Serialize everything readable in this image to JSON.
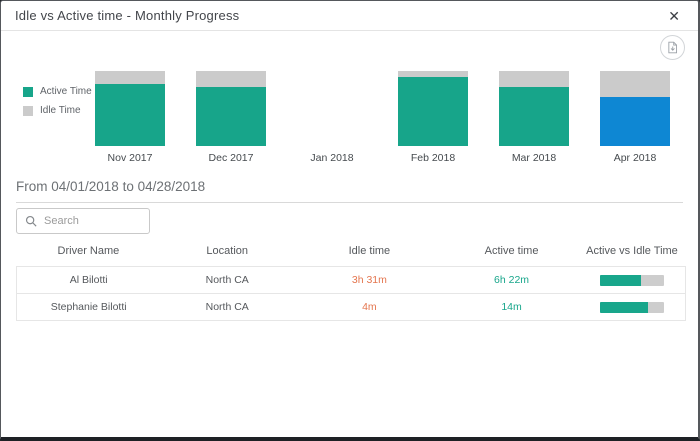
{
  "modal": {
    "title": "Idle vs Active time - Monthly Progress",
    "close_label": "✕"
  },
  "chart_data": {
    "type": "bar",
    "stacked": true,
    "stack_mode": "percent",
    "title": "Idle vs Active time - Monthly Progress",
    "categories": [
      "Nov 2017",
      "Dec 2017",
      "Jan 2018",
      "Feb 2018",
      "Mar 2018",
      "Apr 2018"
    ],
    "series": [
      {
        "name": "Active Time",
        "color": "#17a58a",
        "values": [
          83,
          79,
          null,
          92,
          79,
          65
        ]
      },
      {
        "name": "Idle Time",
        "color": "#cbcbcb",
        "values": [
          17,
          21,
          null,
          8,
          21,
          35
        ]
      }
    ],
    "highlight": {
      "category": "Apr 2018",
      "series": "Active Time",
      "color": "#0e87d3"
    },
    "legend_position": "left",
    "ylim": [
      0,
      100
    ],
    "grid": false
  },
  "period": {
    "label": "From 04/01/2018 to 04/28/2018"
  },
  "search": {
    "placeholder": "Search"
  },
  "table": {
    "columns": [
      "Driver Name",
      "Location",
      "Idle time",
      "Active time",
      "Active vs Idle Time"
    ],
    "rows": [
      {
        "driver": "Al Bilotti",
        "location": "North CA",
        "idle_time": "3h 31m",
        "active_time": "6h 22m",
        "active_pct": 64
      },
      {
        "driver": "Stephanie Bilotti",
        "location": "North CA",
        "idle_time": "4m",
        "active_time": "14m",
        "active_pct": 75
      }
    ]
  },
  "colors": {
    "active": "#17a58a",
    "idle": "#cbcbcb",
    "selected": "#0e87d3",
    "idle_text": "#e4764f",
    "active_text": "#18a68b"
  }
}
